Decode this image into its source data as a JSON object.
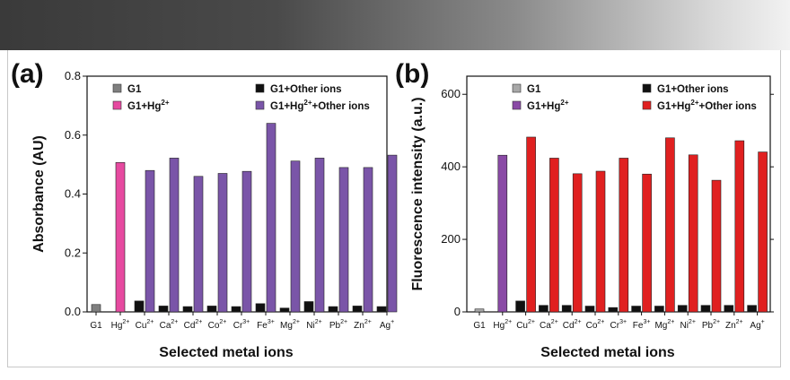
{
  "chart_data": [
    {
      "type": "bar",
      "panel_label": "(a)",
      "xlabel": "Selected metal ions",
      "ylabel": "Absorbance (AU)",
      "ylim": [
        0,
        0.8
      ],
      "yticks": [
        "0.0",
        "0.2",
        "0.4",
        "0.6",
        "0.8"
      ],
      "ytick_values": [
        0,
        0.2,
        0.4,
        0.6,
        0.8
      ],
      "categories": [
        {
          "base": "G1",
          "sup": ""
        },
        {
          "base": "Hg",
          "sup": "2+"
        },
        {
          "base": "Cu",
          "sup": "2+"
        },
        {
          "base": "Ca",
          "sup": "2+"
        },
        {
          "base": "Cd",
          "sup": "2+"
        },
        {
          "base": "Co",
          "sup": "2+"
        },
        {
          "base": "Cr",
          "sup": "3+"
        },
        {
          "base": "Fe",
          "sup": "3+"
        },
        {
          "base": "Mg",
          "sup": "2+"
        },
        {
          "base": "Ni",
          "sup": "2+"
        },
        {
          "base": "Pb",
          "sup": "2+"
        },
        {
          "base": "Zn",
          "sup": "2+"
        },
        {
          "base": "Ag",
          "sup": "+"
        }
      ],
      "series": [
        {
          "name": "G1",
          "color": "#7f7f7f",
          "values": [
            0.025,
            null,
            null,
            null,
            null,
            null,
            null,
            null,
            null,
            null,
            null,
            null,
            null
          ]
        },
        {
          "name": "G1+Hg2+",
          "color": "#e64aa0",
          "values": [
            null,
            0.507,
            null,
            null,
            null,
            null,
            null,
            null,
            null,
            null,
            null,
            null,
            null
          ]
        },
        {
          "name": "G1+Other ions",
          "color": "#111111",
          "values": [
            null,
            null,
            0.037,
            0.02,
            0.018,
            0.02,
            0.018,
            0.028,
            0.013,
            0.035,
            0.018,
            0.02,
            0.018
          ]
        },
        {
          "name": "G1+Hg2++Other ions",
          "color": "#7a55a8",
          "values": [
            null,
            null,
            0.48,
            0.522,
            0.46,
            0.47,
            0.477,
            0.64,
            0.512,
            0.522,
            0.49,
            0.49,
            0.532
          ]
        }
      ],
      "legend": [
        {
          "label": "G1",
          "sup": "",
          "tail": "",
          "color": "#7f7f7f"
        },
        {
          "label": "G1+Hg",
          "sup": "2+",
          "tail": "",
          "color": "#e64aa0"
        },
        {
          "label": "G1+Other ions",
          "sup": "",
          "tail": "",
          "color": "#111111"
        },
        {
          "label": "G1+Hg",
          "sup": "2+",
          "tail": "+Other ions",
          "color": "#7a55a8"
        }
      ]
    },
    {
      "type": "bar",
      "panel_label": "(b)",
      "xlabel": "Selected metal ions",
      "ylabel": "Fluorescence intensity (a.u.)",
      "ylim": [
        0,
        650
      ],
      "yticks": [
        "0",
        "200",
        "400",
        "600"
      ],
      "ytick_values": [
        0,
        200,
        400,
        600
      ],
      "categories": [
        {
          "base": "G1",
          "sup": ""
        },
        {
          "base": "Hg",
          "sup": "2+"
        },
        {
          "base": "Cu",
          "sup": "2+"
        },
        {
          "base": "Ca",
          "sup": "2+"
        },
        {
          "base": "Cd",
          "sup": "2+"
        },
        {
          "base": "Co",
          "sup": "2+"
        },
        {
          "base": "Cr",
          "sup": "3+"
        },
        {
          "base": "Fe",
          "sup": "3+"
        },
        {
          "base": "Mg",
          "sup": "2+"
        },
        {
          "base": "Ni",
          "sup": "2+"
        },
        {
          "base": "Pb",
          "sup": "2+"
        },
        {
          "base": "Zn",
          "sup": "2+"
        },
        {
          "base": "Ag",
          "sup": "+"
        }
      ],
      "series": [
        {
          "name": "G1",
          "color": "#a8a8a8",
          "values": [
            8,
            null,
            null,
            null,
            null,
            null,
            null,
            null,
            null,
            null,
            null,
            null,
            null
          ]
        },
        {
          "name": "G1+Hg2+",
          "color": "#8a4aa6",
          "values": [
            null,
            432,
            null,
            null,
            null,
            null,
            null,
            null,
            null,
            null,
            null,
            null,
            null
          ]
        },
        {
          "name": "G1+Other ions",
          "color": "#111111",
          "values": [
            null,
            null,
            30,
            18,
            18,
            16,
            12,
            16,
            16,
            18,
            18,
            18,
            18
          ]
        },
        {
          "name": "G1+Hg2++Other ions",
          "color": "#e02020",
          "values": [
            null,
            null,
            482,
            424,
            381,
            388,
            424,
            380,
            480,
            433,
            363,
            472,
            441
          ]
        }
      ],
      "legend": [
        {
          "label": "G1",
          "sup": "",
          "tail": "",
          "color": "#a8a8a8"
        },
        {
          "label": "G1+Hg",
          "sup": "2+",
          "tail": "",
          "color": "#8a4aa6"
        },
        {
          "label": "G1+Other ions",
          "sup": "",
          "tail": "",
          "color": "#111111"
        },
        {
          "label": "G1+Hg",
          "sup": "2+",
          "tail": "+Other ions",
          "color": "#e02020"
        }
      ]
    }
  ]
}
